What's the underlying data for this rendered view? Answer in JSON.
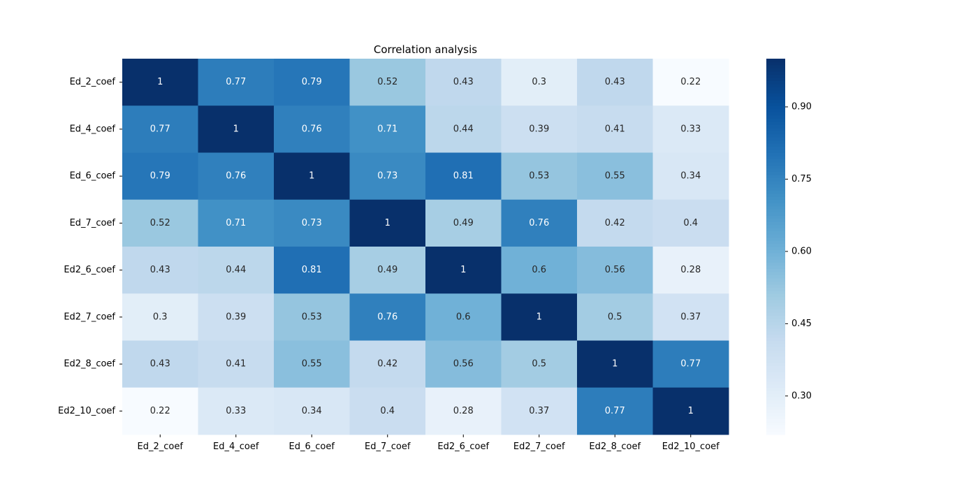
{
  "chart_data": {
    "type": "heatmap",
    "title": "Correlation analysis",
    "xlabel": "",
    "ylabel": "",
    "x_categories": [
      "Ed_2_coef",
      "Ed_4_coef",
      "Ed_6_coef",
      "Ed_7_coef",
      "Ed2_6_coef",
      "Ed2_7_coef",
      "Ed2_8_coef",
      "Ed2_10_coef"
    ],
    "y_categories": [
      "Ed_2_coef",
      "Ed_4_coef",
      "Ed_6_coef",
      "Ed_7_coef",
      "Ed2_6_coef",
      "Ed2_7_coef",
      "Ed2_8_coef",
      "Ed2_10_coef"
    ],
    "values": [
      [
        1,
        0.77,
        0.79,
        0.52,
        0.43,
        0.3,
        0.43,
        0.22
      ],
      [
        0.77,
        1,
        0.76,
        0.71,
        0.44,
        0.39,
        0.41,
        0.33
      ],
      [
        0.79,
        0.76,
        1,
        0.73,
        0.81,
        0.53,
        0.55,
        0.34
      ],
      [
        0.52,
        0.71,
        0.73,
        1,
        0.49,
        0.76,
        0.42,
        0.4
      ],
      [
        0.43,
        0.44,
        0.81,
        0.49,
        1,
        0.6,
        0.56,
        0.28
      ],
      [
        0.3,
        0.39,
        0.53,
        0.76,
        0.6,
        1,
        0.5,
        0.37
      ],
      [
        0.43,
        0.41,
        0.55,
        0.42,
        0.56,
        0.5,
        1,
        0.77
      ],
      [
        0.22,
        0.33,
        0.34,
        0.4,
        0.28,
        0.37,
        0.77,
        1
      ]
    ],
    "colormap": "Blues",
    "color_range": [
      0.22,
      1
    ],
    "colorbar_ticks": [
      "0.30",
      "0.45",
      "0.60",
      "0.75",
      "0.90"
    ],
    "colorbar_tick_values": [
      0.3,
      0.45,
      0.6,
      0.75,
      0.9
    ],
    "annotated": true,
    "grid": false
  }
}
